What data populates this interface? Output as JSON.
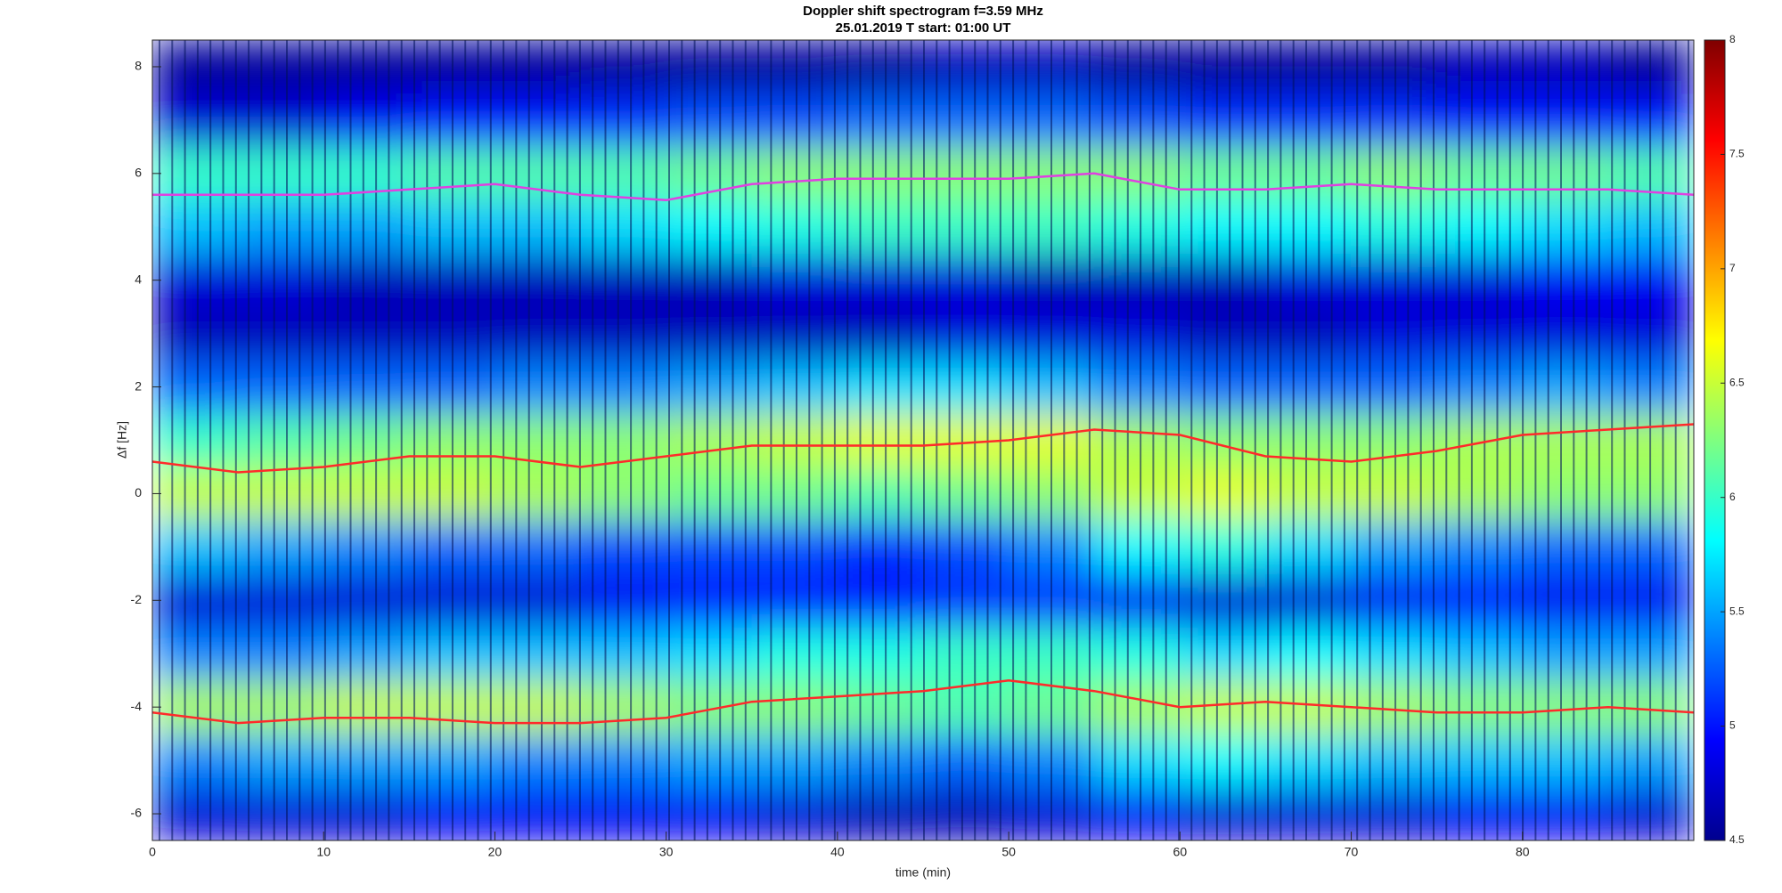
{
  "chart_data": {
    "type": "heatmap",
    "title": "Doppler shift spectrogram f=3.59 MHz",
    "subtitle": "25.01.2019   T start: 01:00 UT",
    "xlabel": "time (min)",
    "ylabel": "Δf [Hz]",
    "xlim": [
      0,
      90
    ],
    "xticks": [
      0,
      10,
      20,
      30,
      40,
      50,
      60,
      70,
      80
    ],
    "ylim": [
      -6.5,
      8.5
    ],
    "yticks": [
      -6,
      -4,
      -2,
      0,
      2,
      4,
      6,
      8
    ],
    "clim": [
      4.5,
      8
    ],
    "cticks": [
      4.5,
      5,
      5.5,
      6,
      6.5,
      7,
      7.5,
      8
    ],
    "colormap": "jet",
    "x": [
      2.5,
      7.5,
      12.5,
      17.5,
      22.5,
      27.5,
      32.5,
      37.5,
      42.5,
      47.5,
      52.5,
      57.5,
      62.5,
      67.5,
      72.5,
      77.5,
      82.5,
      87.5
    ],
    "y": [
      -6,
      -5,
      -4,
      -3,
      -2,
      -1,
      0,
      1,
      2,
      3,
      4,
      5,
      6,
      7,
      8
    ],
    "z": [
      [
        4.8,
        4.8,
        4.8,
        4.9,
        4.9,
        4.9,
        4.9,
        4.8,
        4.7,
        4.7,
        4.8,
        4.9,
        4.8,
        4.8,
        4.8,
        4.9,
        4.9,
        4.8
      ],
      [
        5.4,
        5.5,
        5.5,
        5.5,
        5.4,
        5.4,
        5.5,
        5.5,
        5.4,
        5.3,
        5.4,
        5.7,
        5.8,
        5.7,
        5.6,
        5.6,
        5.6,
        5.5
      ],
      [
        6.4,
        6.4,
        6.5,
        6.5,
        6.5,
        6.4,
        6.3,
        6.3,
        6.2,
        6.1,
        6.2,
        6.4,
        6.5,
        6.5,
        6.4,
        6.3,
        6.3,
        6.3
      ],
      [
        5.4,
        5.4,
        5.5,
        5.6,
        5.6,
        5.6,
        5.7,
        5.9,
        5.9,
        6.0,
        6.0,
        5.9,
        5.7,
        5.8,
        5.7,
        5.6,
        5.5,
        5.5
      ],
      [
        4.8,
        4.8,
        4.8,
        4.8,
        4.8,
        4.9,
        5.0,
        5.0,
        5.0,
        5.1,
        5.1,
        4.9,
        4.8,
        4.8,
        4.9,
        5.0,
        4.9,
        4.9
      ],
      [
        5.6,
        5.5,
        5.4,
        5.3,
        5.3,
        5.2,
        5.2,
        5.2,
        5.1,
        5.2,
        5.4,
        5.8,
        5.9,
        5.7,
        5.5,
        5.4,
        5.3,
        5.3
      ],
      [
        6.5,
        6.5,
        6.5,
        6.5,
        6.4,
        6.3,
        6.2,
        6.2,
        6.1,
        6.2,
        6.3,
        6.5,
        6.6,
        6.5,
        6.5,
        6.4,
        6.3,
        6.3
      ],
      [
        6.0,
        6.1,
        6.2,
        6.3,
        6.3,
        6.3,
        6.4,
        6.5,
        6.6,
        6.6,
        6.6,
        6.4,
        6.3,
        6.3,
        6.3,
        6.4,
        6.4,
        6.4
      ],
      [
        5.3,
        5.3,
        5.3,
        5.3,
        5.4,
        5.4,
        5.5,
        5.6,
        5.7,
        5.7,
        5.6,
        5.4,
        5.3,
        5.3,
        5.3,
        5.4,
        5.5,
        5.4
      ],
      [
        4.7,
        4.7,
        4.7,
        4.7,
        4.7,
        4.7,
        4.7,
        4.7,
        4.7,
        4.8,
        4.8,
        4.8,
        4.7,
        4.7,
        4.8,
        4.8,
        4.8,
        4.8
      ],
      [
        4.8,
        4.8,
        4.7,
        4.7,
        4.7,
        4.7,
        4.7,
        4.8,
        4.8,
        4.8,
        4.7,
        4.7,
        4.7,
        4.8,
        4.8,
        4.8,
        4.9,
        4.9
      ],
      [
        5.6,
        5.5,
        5.5,
        5.6,
        5.6,
        5.7,
        5.8,
        5.9,
        6.0,
        6.0,
        6.0,
        5.9,
        5.8,
        5.8,
        5.9,
        5.8,
        5.7,
        5.6
      ],
      [
        6.0,
        6.0,
        6.0,
        6.1,
        6.1,
        6.1,
        6.2,
        6.3,
        6.3,
        6.3,
        6.3,
        6.3,
        6.2,
        6.2,
        6.3,
        6.2,
        6.2,
        6.1
      ],
      [
        4.8,
        4.8,
        4.9,
        5.0,
        5.0,
        5.1,
        5.2,
        5.2,
        5.3,
        5.3,
        5.3,
        5.2,
        5.1,
        5.1,
        5.1,
        5.0,
        5.0,
        5.0
      ],
      [
        4.6,
        4.6,
        4.6,
        4.6,
        4.6,
        4.6,
        4.6,
        4.6,
        4.6,
        4.7,
        4.7,
        4.6,
        4.6,
        4.6,
        4.6,
        4.7,
        4.7,
        4.6
      ]
    ],
    "lines": {
      "x": [
        0,
        5,
        10,
        15,
        20,
        25,
        30,
        35,
        40,
        45,
        50,
        55,
        60,
        65,
        70,
        75,
        80,
        85,
        90
      ],
      "series": [
        {
          "color": "#e040e0",
          "values": [
            5.6,
            5.6,
            5.6,
            5.7,
            5.8,
            5.6,
            5.5,
            5.8,
            5.9,
            5.9,
            5.9,
            6.0,
            5.7,
            5.7,
            5.8,
            5.7,
            5.7,
            5.7,
            5.6
          ]
        },
        {
          "color": "#ff2a2a",
          "values": [
            0.6,
            0.4,
            0.5,
            0.7,
            0.7,
            0.5,
            0.7,
            0.9,
            0.9,
            0.9,
            1.0,
            1.2,
            1.1,
            0.7,
            0.6,
            0.8,
            1.1,
            1.2,
            1.3
          ]
        },
        {
          "color": "#ff2a2a",
          "values": [
            -4.1,
            -4.3,
            -4.2,
            -4.2,
            -4.3,
            -4.3,
            -4.2,
            -3.9,
            -3.8,
            -3.7,
            -3.5,
            -3.7,
            -4.0,
            -3.9,
            -4.0,
            -4.1,
            -4.1,
            -4.0,
            -4.1
          ]
        }
      ]
    }
  }
}
